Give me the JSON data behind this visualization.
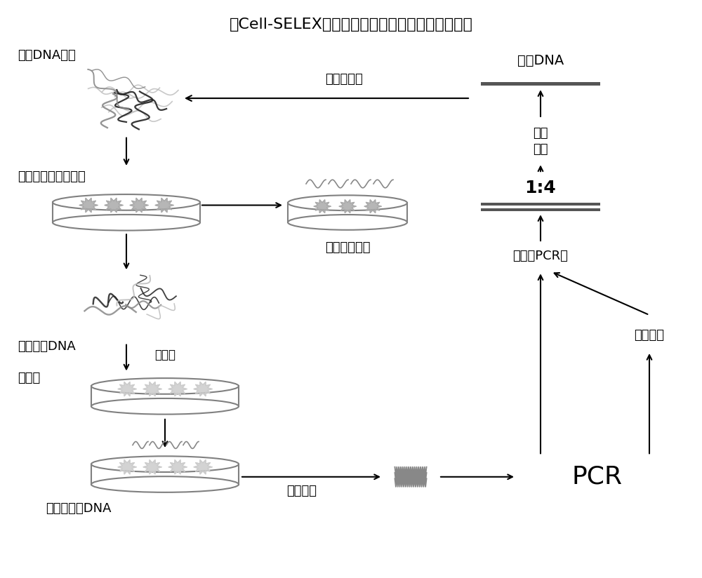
{
  "title": "（Cell-SELEX）细胞指数富集的配基系统进化技术",
  "title_fontsize": 16,
  "bg_color": "#ffffff",
  "text_color": "#000000",
  "labels": {
    "ssDNA_library": "单链DNA文库",
    "negative_screen": "对照筛选（负筛选）",
    "unbound_dna": "未结合的DNA",
    "positive_screen": "正筛选",
    "target_cell": "靶细胞",
    "bound_ssDNA": "结合型单链DNA",
    "negative_control": "阴性对照细胞",
    "next_round": "下一轮筛选",
    "separation": "分离提取",
    "ssDNA_product": "单链DNA",
    "purification_line1": "纯化",
    "purification_line2": "分离",
    "ratio": "1:4",
    "asymmetric_pcr": "不对称PCR法",
    "cloning": "克隆测序",
    "pcr": "PCR"
  },
  "arrow_color": "#000000",
  "plate_color": "#808080",
  "bar_color": "#555555",
  "cell_color": "#aaaaaa",
  "dna_dark": "#222222",
  "dna_gray": "#888888",
  "dna_light": "#bbbbbb"
}
